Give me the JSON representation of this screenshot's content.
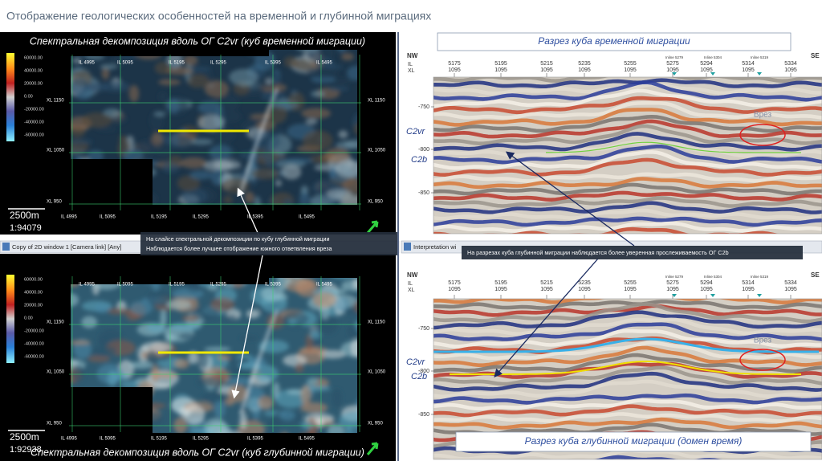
{
  "header": {
    "title": "Отображение геологических особенностей на временной и глубинной миграциях"
  },
  "panels": [
    {
      "caption": "Спектральная декомпозиция вдоль ОГ C2vr (куб временной миграции)",
      "colorbar": [
        "60000.00",
        "40000.00",
        "20000.00",
        "0.00",
        "-20000.00",
        "-40000.00",
        "-60000.00"
      ],
      "il_top": [
        "IL 4995",
        "IL 5095",
        "IL 5195",
        "IL 5295",
        "IL 5395",
        "IL 5495"
      ],
      "il_bottom": [
        "IL 4995",
        "IL 5095",
        "IL 5195",
        "IL 5295",
        "IL 5395",
        "IL 5495"
      ],
      "xl_left": [
        "XL 1150",
        "XL 1050",
        "XL 950"
      ],
      "xl_right": [
        "XL 1150",
        "XL 1050",
        "XL 950"
      ],
      "scale": "2500m",
      "ratio": "1:94079"
    },
    {
      "caption": "Спектральная декомпозиция вдоль ОГ C2vr (куб глубинной миграции)",
      "colorbar": [
        "60000.00",
        "40000.00",
        "20000.00",
        "0.00",
        "-20000.00",
        "-40000.00",
        "-60000.00"
      ],
      "il_top": [
        "IL 4995",
        "IL 5095",
        "IL 5195",
        "IL 5295",
        "IL 5395",
        "IL 5495"
      ],
      "il_bottom": [
        "IL 4995",
        "IL 5095",
        "IL 5195",
        "IL 5295",
        "IL 5395",
        "IL 5495"
      ],
      "xl_left": [
        "XL 1150",
        "XL 1050",
        "XL 950"
      ],
      "xl_right": [
        "XL 1150",
        "XL 1050",
        "XL 950"
      ],
      "scale": "2500m",
      "ratio": "1:92938"
    }
  ],
  "windows": [
    "Copy of 2D window 1 [Camera link] [Any]",
    "Interpretation wi"
  ],
  "annotations": [
    {
      "lines": [
        "На слайсе спектральной декомпозиции по кубу глубинной миграции",
        "Наблюдается более лучшее отображение южного ответвления вреза"
      ]
    },
    {
      "lines": [
        "На разрезах куба глубинной миграции наблюдается более уверенная прослеживаемость ОГ C2b"
      ]
    }
  ],
  "sections": [
    {
      "caption": "Разрез куба временной миграции",
      "left": "NW",
      "right": "SE",
      "row_labels": [
        "IL",
        "XL"
      ],
      "columns": [
        [
          "5175",
          "1095"
        ],
        [
          "5195",
          "1095"
        ],
        [
          "5215",
          "1095"
        ],
        [
          "5235",
          "1095"
        ],
        [
          "5255",
          "1095"
        ],
        [
          "5275",
          "1095"
        ],
        [
          "5294",
          "1095"
        ],
        [
          "5314",
          "1095"
        ],
        [
          "5334",
          "1095"
        ]
      ],
      "inlines": [
        "Inline 5279",
        "Inline 5304",
        "Inline 5319"
      ],
      "depths": [
        "-750",
        "-800",
        "-850"
      ],
      "horizons": [
        "C2vr",
        "C2b"
      ],
      "feature": "Врез"
    },
    {
      "caption": "Разрез куба глубинной миграции (домен время)",
      "left": "NW",
      "right": "SE",
      "row_labels": [
        "IL",
        "XL"
      ],
      "columns": [
        [
          "5175",
          "1095"
        ],
        [
          "5195",
          "1095"
        ],
        [
          "5215",
          "1095"
        ],
        [
          "5235",
          "1095"
        ],
        [
          "5255",
          "1095"
        ],
        [
          "5275",
          "1095"
        ],
        [
          "5294",
          "1095"
        ],
        [
          "5314",
          "1095"
        ],
        [
          "5334",
          "1095"
        ]
      ],
      "inlines": [
        "Inline 5279",
        "Inline 5304",
        "Inline 5319"
      ],
      "depths": [
        "-750",
        "-800",
        "-850"
      ],
      "horizons": [
        "C2vr",
        "C2b"
      ],
      "feature": "Врез"
    }
  ]
}
